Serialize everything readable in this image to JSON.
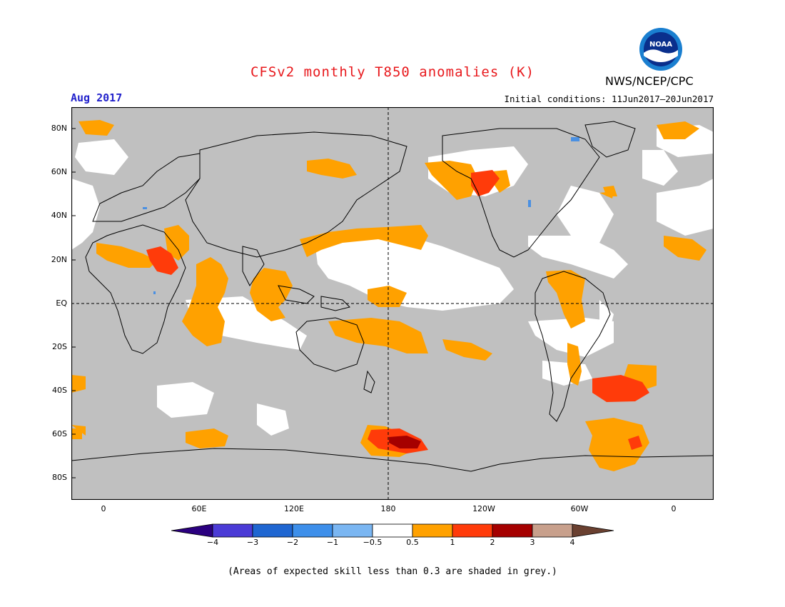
{
  "title": "CFSv2 monthly T850 anomalies (K)",
  "agency": "NWS/NCEP/CPC",
  "logo": {
    "text": "NOAA",
    "icon": "noaa-logo-icon"
  },
  "period": "Aug 2017",
  "initial_conditions": "Initial conditions: 11Jun2017–20Jun2017",
  "lat_labels": [
    "80N",
    "60N",
    "40N",
    "20N",
    "EQ",
    "20S",
    "40S",
    "60S",
    "80S"
  ],
  "lon_labels": [
    "0",
    "60E",
    "120E",
    "180",
    "120W",
    "60W",
    "0"
  ],
  "colorbar": {
    "labels": [
      "−4",
      "−3",
      "−2",
      "−1",
      "−0.5",
      "0.5",
      "1",
      "2",
      "3",
      "4"
    ],
    "colors": [
      "#2b0080",
      "#4b3bd6",
      "#1f66d1",
      "#3d8fea",
      "#7ab6f2",
      "#ffffff",
      "#ffa100",
      "#ff3b0a",
      "#a50000",
      "#c8a08c",
      "#6a4030"
    ]
  },
  "colors": {
    "grey": "#c0c0c0",
    "orange": "#ffa100",
    "red": "#ff3b0a",
    "darkred": "#a50000",
    "blue": "#4a90e2"
  },
  "note": "(Areas of expected skill less than 0.3 are shaded in grey.)"
}
